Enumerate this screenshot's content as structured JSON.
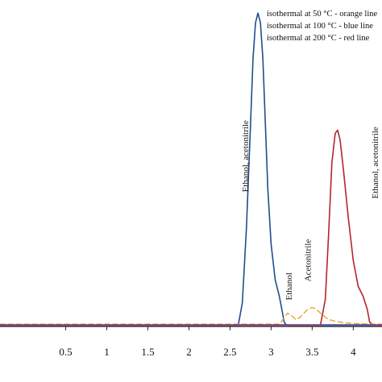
{
  "chart_data": {
    "type": "line",
    "title": "",
    "xlabel": "",
    "ylabel": "",
    "xlim": [
      -0.3,
      4.35
    ],
    "ylim": [
      -0.05,
      1.0
    ],
    "grid": false,
    "legend_position": "top-right",
    "x_ticks": [
      {
        "value": 0.5,
        "label": "0.5"
      },
      {
        "value": 1,
        "label": "1"
      },
      {
        "value": 1.5,
        "label": "1.5"
      },
      {
        "value": 2,
        "label": "2"
      },
      {
        "value": 2.5,
        "label": "2.5"
      },
      {
        "value": 3,
        "label": "3"
      },
      {
        "value": 3.5,
        "label": "3.5"
      },
      {
        "value": 4,
        "label": "4"
      }
    ],
    "legend": [
      "isothermal at 50 °C -  orange line",
      "isothermal at 100 °C - blue line",
      "isothermal at 200 °C -  red line"
    ],
    "series": [
      {
        "color": "#1f4e8c",
        "dashed": false,
        "x": [
          -0.3,
          2.6,
          2.65,
          2.7,
          2.75,
          2.78,
          2.81,
          2.84,
          2.87,
          2.9,
          2.93,
          2.96,
          3.0,
          3.05,
          3.1,
          3.13,
          3.16,
          3.18,
          3.2,
          4.35
        ],
        "y": [
          0.0,
          0.0,
          0.07,
          0.3,
          0.62,
          0.82,
          0.93,
          0.96,
          0.93,
          0.82,
          0.62,
          0.42,
          0.25,
          0.14,
          0.09,
          0.05,
          0.01,
          0.003,
          0.0,
          0.0
        ]
      },
      {
        "color": "#b5242e",
        "dashed": false,
        "x": [
          -0.3,
          3.6,
          3.66,
          3.7,
          3.74,
          3.78,
          3.81,
          3.84,
          3.88,
          3.94,
          4.0,
          4.06,
          4.12,
          4.17,
          4.2,
          4.25,
          4.35
        ],
        "y": [
          0.0,
          0.0,
          0.08,
          0.28,
          0.5,
          0.59,
          0.6,
          0.57,
          0.48,
          0.33,
          0.2,
          0.12,
          0.09,
          0.05,
          0.01,
          0.0,
          0.0
        ]
      },
      {
        "color": "#e8a030",
        "dashed": true,
        "x": [
          -0.3,
          3.1,
          3.15,
          3.2,
          3.25,
          3.3,
          3.35,
          3.4,
          3.45,
          3.5,
          3.55,
          3.6,
          3.65,
          3.7,
          3.8,
          3.9,
          4.0,
          4.1,
          4.2,
          4.35
        ],
        "y": [
          0.004,
          0.004,
          0.02,
          0.038,
          0.03,
          0.018,
          0.024,
          0.038,
          0.05,
          0.055,
          0.05,
          0.038,
          0.027,
          0.018,
          0.012,
          0.008,
          0.006,
          0.005,
          0.004,
          0.004
        ]
      },
      {
        "color": "#5a4a9a",
        "dashed": false,
        "x": [
          -0.3,
          4.35
        ],
        "y": [
          0.002,
          0.002
        ]
      }
    ],
    "annotations": [
      {
        "text": "Ethanol, acetonitrile",
        "x": 2.72,
        "y": 0.52
      },
      {
        "text": "Ethanol",
        "x": 3.25,
        "y": 0.12
      },
      {
        "text": "Acetonitrile",
        "x": 3.48,
        "y": 0.2
      },
      {
        "text": "Ethanol, acetonitrile",
        "x": 4.3,
        "y": 0.5
      }
    ]
  }
}
